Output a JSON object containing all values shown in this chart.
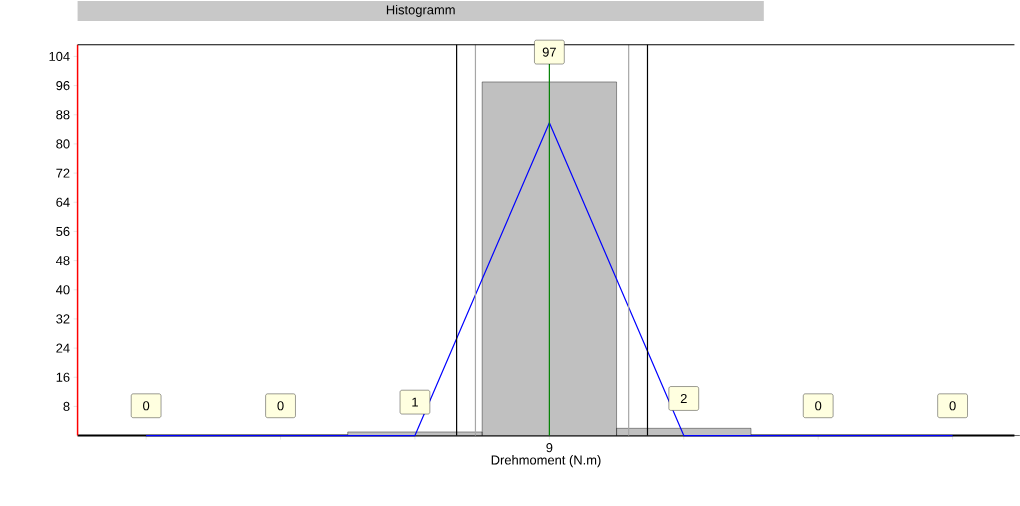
{
  "chart_data": {
    "type": "bar",
    "title": "Histogramm",
    "xlabel": "Drehmoment (N.m)",
    "categories": [
      null,
      null,
      null,
      "9",
      null,
      null,
      null
    ],
    "ylim": [
      0,
      107.2
    ],
    "yticks": [
      8,
      16,
      24,
      32,
      40,
      48,
      56,
      64,
      72,
      80,
      88,
      96,
      104
    ],
    "grid": false,
    "series": [
      {
        "color": "#c0c0c0",
        "values": [
          0,
          0,
          1,
          97,
          2,
          0,
          0
        ],
        "value_labels": [
          "0",
          "0",
          "1",
          "97",
          "2",
          "0",
          "0"
        ]
      },
      {
        "type": "line",
        "color": "#0000ff",
        "values": [
          0,
          0,
          0,
          85.8,
          0,
          0,
          0
        ]
      }
    ],
    "ref_lines": [
      {
        "axis": "x",
        "value": "9",
        "color": "#008000"
      }
    ]
  }
}
